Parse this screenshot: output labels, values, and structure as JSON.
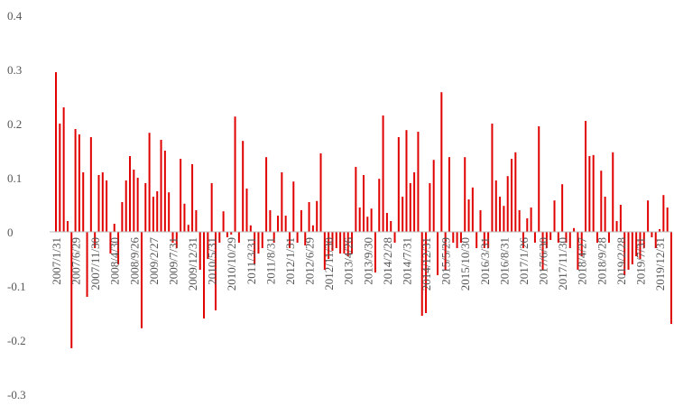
{
  "chart_data": {
    "type": "bar",
    "color": "#e00000",
    "grid": false,
    "ylim": [
      -0.3,
      0.4
    ],
    "yticks": [
      -0.3,
      -0.2,
      -0.1,
      0,
      0.1,
      0.2,
      0.3,
      0.4
    ],
    "categories": [
      "2007/1/31",
      null,
      null,
      null,
      null,
      "2007/6/29",
      null,
      null,
      null,
      null,
      "2007/11/30",
      null,
      null,
      null,
      null,
      "2008/4/30",
      null,
      null,
      null,
      null,
      "2008/9/26",
      null,
      null,
      null,
      null,
      "2009/2/27",
      null,
      null,
      null,
      null,
      "2009/7/31",
      null,
      null,
      null,
      null,
      "2009/12/31",
      null,
      null,
      null,
      null,
      "2010/5/31",
      null,
      null,
      null,
      null,
      "2010/10/29",
      null,
      null,
      null,
      null,
      "2011/3/31",
      null,
      null,
      null,
      null,
      "2011/8/31",
      null,
      null,
      null,
      null,
      "2012/1/31",
      null,
      null,
      null,
      null,
      "2012/6/29",
      null,
      null,
      null,
      null,
      "2012/11/30",
      null,
      null,
      null,
      null,
      "2013/4/26",
      null,
      null,
      null,
      null,
      "2013/9/30",
      null,
      null,
      null,
      null,
      "2014/2/28",
      null,
      null,
      null,
      null,
      "2014/7/31",
      null,
      null,
      null,
      null,
      "2014/12/31",
      null,
      null,
      null,
      null,
      "2015/5/29",
      null,
      null,
      null,
      null,
      "2015/10/30",
      null,
      null,
      null,
      null,
      "2016/3/31",
      null,
      null,
      null,
      null,
      "2016/8/31",
      null,
      null,
      null,
      null,
      "2017/1/26",
      null,
      null,
      null,
      null,
      "2017/6/30",
      null,
      null,
      null,
      null,
      "2017/11/30",
      null,
      null,
      null,
      null,
      "2018/4/27",
      null,
      null,
      null,
      null,
      "2018/9/28",
      null,
      null,
      null,
      null,
      "2019/2/28",
      null,
      null,
      null,
      null,
      "2019/7/31",
      null,
      null,
      null,
      null,
      "2019/12/31",
      null,
      null,
      null
    ],
    "values": [
      0.295,
      0.2,
      0.23,
      0.02,
      -0.215,
      0.19,
      0.18,
      0.11,
      -0.12,
      0.175,
      -0.03,
      0.105,
      0.11,
      0.095,
      -0.04,
      0.015,
      -0.06,
      0.055,
      0.095,
      0.14,
      0.115,
      0.1,
      -0.178,
      0.09,
      0.183,
      0.065,
      0.075,
      0.17,
      0.15,
      0.073,
      -0.02,
      -0.03,
      0.135,
      0.052,
      0.013,
      0.125,
      0.04,
      -0.07,
      -0.16,
      -0.05,
      0.09,
      -0.145,
      -0.02,
      0.038,
      -0.01,
      -0.005,
      0.213,
      -0.02,
      0.168,
      0.08,
      0.012,
      -0.06,
      -0.04,
      -0.03,
      0.138,
      0.04,
      -0.02,
      0.03,
      0.11,
      0.03,
      -0.03,
      0.093,
      -0.02,
      0.04,
      -0.025,
      0.055,
      0.012,
      0.057,
      0.145,
      -0.07,
      -0.05,
      -0.035,
      -0.03,
      -0.04,
      -0.04,
      -0.045,
      -0.04,
      0.12,
      0.045,
      0.105,
      0.028,
      0.043,
      -0.075,
      0.098,
      0.215,
      0.035,
      0.02,
      -0.02,
      0.175,
      0.065,
      0.188,
      0.09,
      0.11,
      0.185,
      -0.155,
      -0.15,
      0.09,
      0.133,
      -0.08,
      0.258,
      -0.07,
      0.138,
      -0.02,
      -0.03,
      -0.02,
      0.138,
      0.06,
      0.082,
      -0.03,
      0.04,
      -0.03,
      -0.03,
      0.2,
      0.095,
      0.065,
      0.048,
      0.103,
      0.135,
      0.147,
      0.04,
      -0.03,
      0.025,
      0.045,
      -0.02,
      0.195,
      -0.07,
      -0.03,
      -0.015,
      0.058,
      -0.02,
      0.088,
      -0.02,
      -0.03,
      0.007,
      -0.07,
      -0.045,
      0.205,
      0.14,
      0.142,
      -0.02,
      0.113,
      0.065,
      -0.02,
      0.147,
      0.02,
      0.05,
      -0.08,
      -0.07,
      -0.06,
      -0.045,
      -0.05,
      -0.03,
      0.058,
      -0.01,
      -0.03,
      0.005,
      0.068,
      0.045,
      -0.17
    ]
  }
}
